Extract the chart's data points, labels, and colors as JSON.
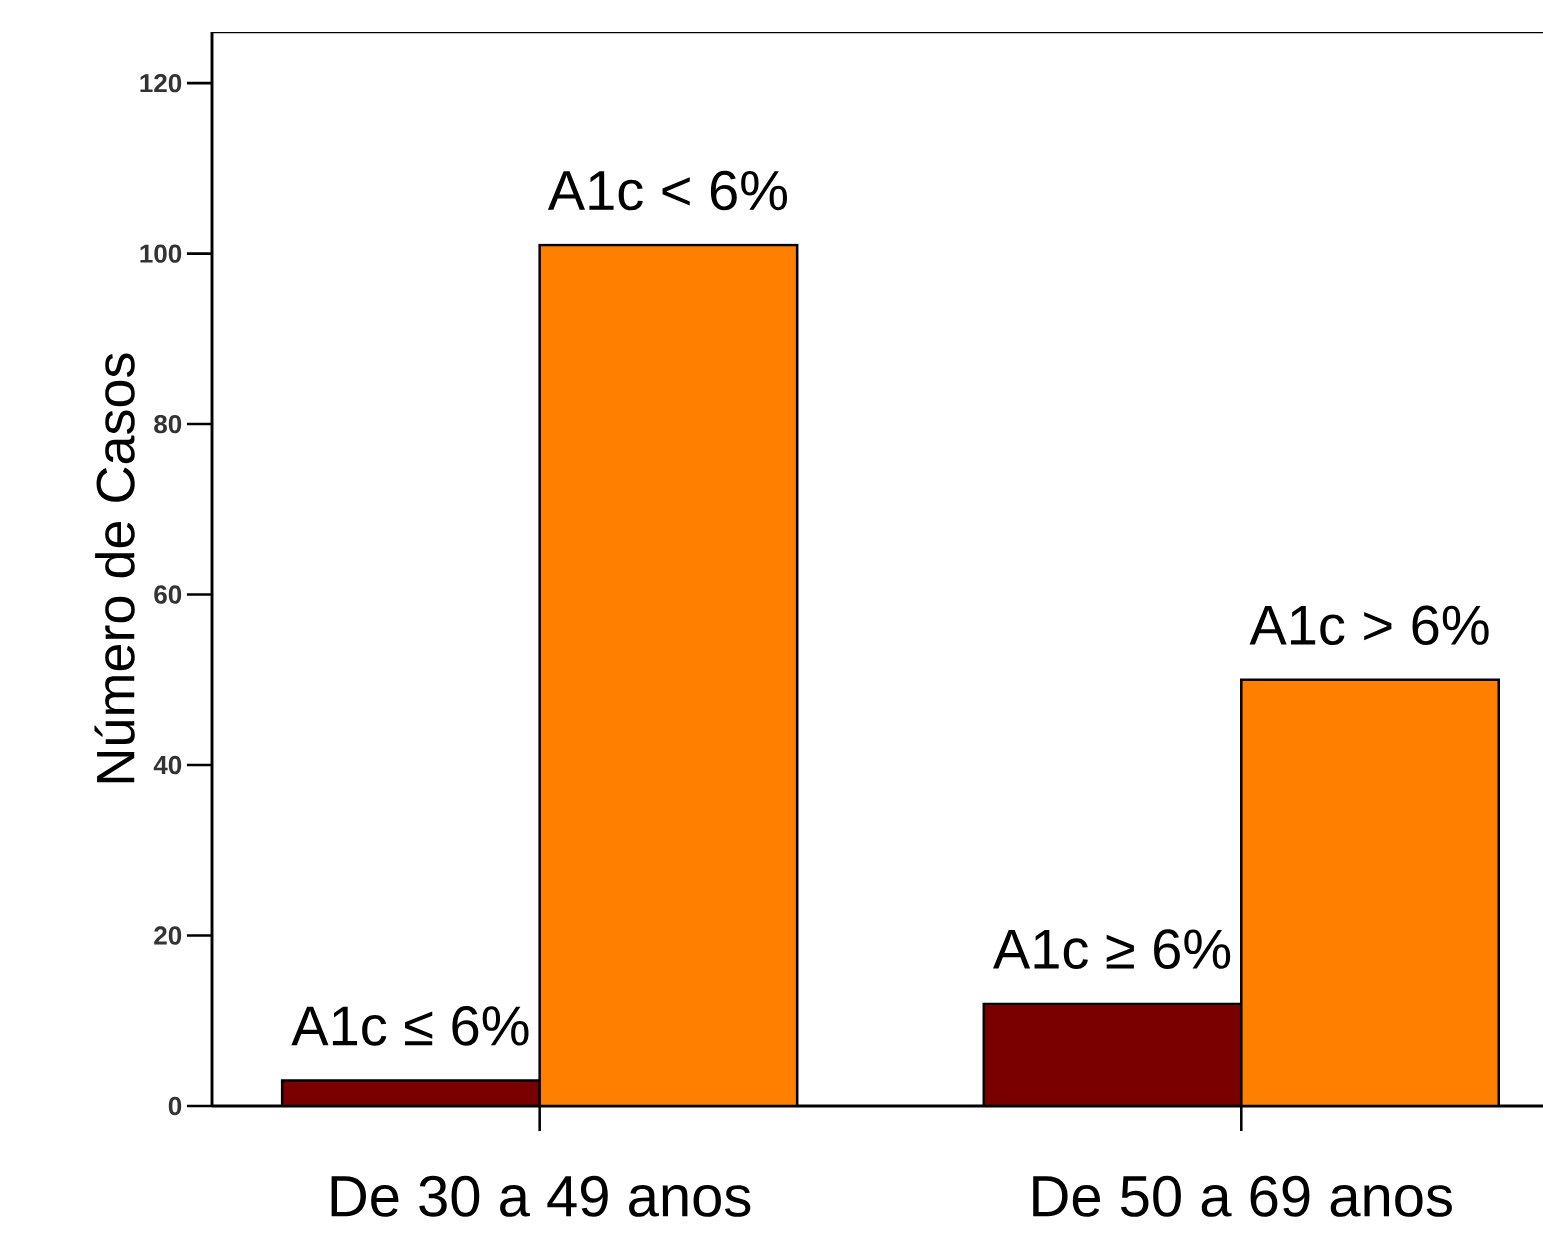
{
  "chart_data": {
    "type": "bar",
    "categories": [
      "De 30 a 49 anos",
      "De 50 a 69 anos"
    ],
    "series": [
      {
        "color": "#7a0000",
        "values": [
          3,
          12
        ]
      },
      {
        "color": "#ff8000",
        "values": [
          101,
          50
        ]
      }
    ],
    "ylabel": "Número de Casos",
    "ylim": [
      0,
      126
    ],
    "yticks": [
      0,
      20,
      40,
      60,
      80,
      100,
      120
    ],
    "annotations": [
      {
        "text": "A1c ≤ 6%",
        "x": "De 30 a 49 anos",
        "y": 3
      },
      {
        "text": "A1c < 6%",
        "x": "De 30 a 49 anos",
        "y": 101
      },
      {
        "text": "A1c ≥ 6%",
        "x": "De 50 a 69 anos",
        "y": 12
      },
      {
        "text": "A1c > 6%",
        "x": "De 50 a 69 anos",
        "y": 50
      }
    ]
  }
}
